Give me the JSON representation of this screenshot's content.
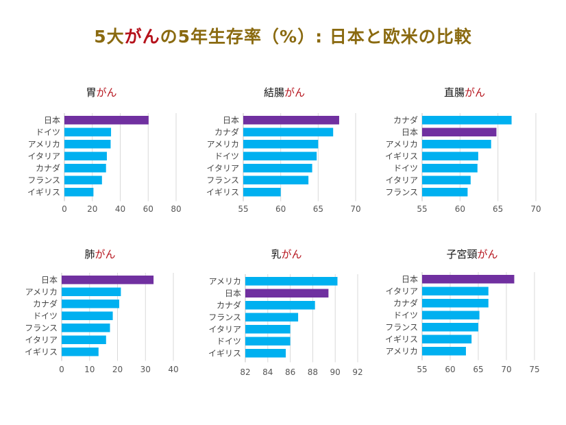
{
  "title": {
    "part1": "5大",
    "part2": "がん",
    "part3": "の5年生存率（%）: 日本と欧米の比較"
  },
  "colors": {
    "highlight": "#7030a0",
    "bar": "#00b0f0",
    "title_gold": "#8a6a10",
    "title_red": "#b5121b"
  },
  "chart_data": [
    {
      "type": "bar",
      "orientation": "horizontal",
      "title_prefix": "胃",
      "title_suffix": "がん",
      "categories": [
        "日本",
        "ドイツ",
        "アメリカ",
        "イタリア",
        "カナダ",
        "フランス",
        "イギリス"
      ],
      "values": [
        60.3,
        33.4,
        33.1,
        30.4,
        29.8,
        26.9,
        20.8
      ],
      "highlight": "日本",
      "xlim": [
        0,
        80
      ],
      "xticks": [
        0,
        20,
        40,
        60,
        80
      ],
      "grid": true
    },
    {
      "type": "bar",
      "orientation": "horizontal",
      "title_prefix": "結腸",
      "title_suffix": "がん",
      "categories": [
        "日本",
        "カナダ",
        "アメリカ",
        "ドイツ",
        "イタリア",
        "フランス",
        "イギリス"
      ],
      "values": [
        67.8,
        67.0,
        65.0,
        64.8,
        64.2,
        63.7,
        60.0
      ],
      "highlight": "日本",
      "xlim": [
        55,
        70
      ],
      "xticks": [
        55,
        60,
        65,
        70
      ],
      "grid": true
    },
    {
      "type": "bar",
      "orientation": "horizontal",
      "title_prefix": "直腸",
      "title_suffix": "がん",
      "categories": [
        "カナダ",
        "日本",
        "アメリカ",
        "イギリス",
        "ドイツ",
        "イタリア",
        "フランス"
      ],
      "values": [
        66.8,
        64.8,
        64.1,
        62.4,
        62.3,
        61.4,
        61.0
      ],
      "highlight": "日本",
      "xlim": [
        55,
        70
      ],
      "xticks": [
        55,
        60,
        65,
        70
      ],
      "grid": true
    },
    {
      "type": "bar",
      "orientation": "horizontal",
      "title_prefix": "肺",
      "title_suffix": "がん",
      "categories": [
        "日本",
        "アメリカ",
        "カナダ",
        "ドイツ",
        "フランス",
        "イタリア",
        "イギリス"
      ],
      "values": [
        32.9,
        21.2,
        20.6,
        18.3,
        17.3,
        15.9,
        13.2
      ],
      "highlight": "日本",
      "xlim": [
        0,
        40
      ],
      "xticks": [
        0,
        10,
        20,
        30,
        40
      ],
      "grid": true
    },
    {
      "type": "bar",
      "orientation": "horizontal",
      "title_prefix": "乳",
      "title_suffix": "がん",
      "categories": [
        "アメリカ",
        "日本",
        "カナダ",
        "フランス",
        "イタリア",
        "ドイツ",
        "イギリス"
      ],
      "values": [
        90.2,
        89.4,
        88.2,
        86.7,
        86.0,
        86.0,
        85.6
      ],
      "highlight": "日本",
      "xlim": [
        82,
        92
      ],
      "xticks": [
        82,
        84,
        86,
        88,
        90,
        92
      ],
      "grid": true
    },
    {
      "type": "bar",
      "orientation": "horizontal",
      "title_prefix": "子宮頸",
      "title_suffix": "がん",
      "categories": [
        "日本",
        "イタリア",
        "カナダ",
        "ドイツ",
        "フランス",
        "イギリス",
        "アメリカ"
      ],
      "values": [
        71.4,
        66.8,
        66.8,
        65.2,
        65.0,
        63.8,
        62.8
      ],
      "highlight": "日本",
      "xlim": [
        55,
        75
      ],
      "xticks": [
        55,
        60,
        65,
        70,
        75
      ],
      "grid": true
    }
  ]
}
